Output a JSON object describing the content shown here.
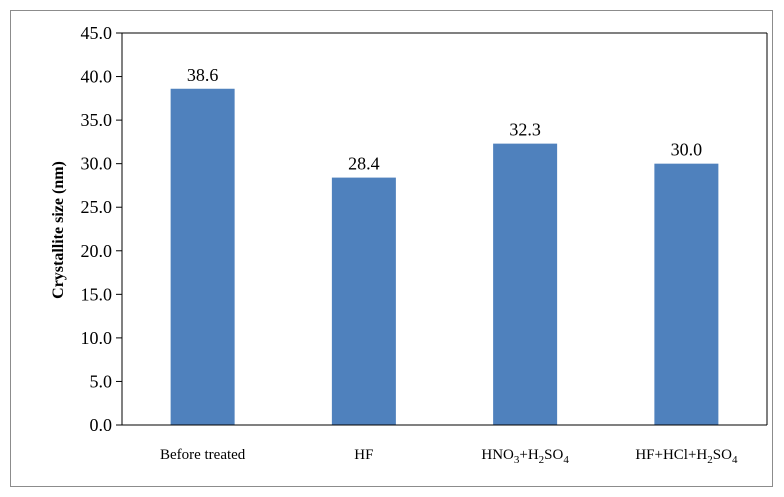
{
  "chart_data": {
    "type": "bar",
    "categories": [
      "Before treated",
      "HF",
      "HNO3+H2SO4",
      "HF+HCl+H2SO4"
    ],
    "category_rich": [
      [
        {
          "t": "Before treated"
        }
      ],
      [
        {
          "t": "HF"
        }
      ],
      [
        {
          "t": "HNO"
        },
        {
          "t": "3",
          "sub": true
        },
        {
          "t": "+H"
        },
        {
          "t": "2",
          "sub": true
        },
        {
          "t": "SO"
        },
        {
          "t": "4",
          "sub": true
        }
      ],
      [
        {
          "t": "HF+HCl+H"
        },
        {
          "t": "2",
          "sub": true
        },
        {
          "t": "SO"
        },
        {
          "t": "4",
          "sub": true
        }
      ]
    ],
    "values": [
      38.6,
      28.4,
      32.3,
      30.0
    ],
    "data_labels": [
      "38.6",
      "28.4",
      "32.3",
      "30.0"
    ],
    "title": "",
    "xlabel": "",
    "ylabel": "Crystallite size  (nm)",
    "ylim": [
      0,
      45
    ],
    "yticks": [
      "0.0",
      "5.0",
      "10.0",
      "15.0",
      "20.0",
      "25.0",
      "30.0",
      "35.0",
      "40.0",
      "45.0"
    ],
    "grid": false,
    "legend": "none",
    "bar_color": "#4f81bd"
  }
}
